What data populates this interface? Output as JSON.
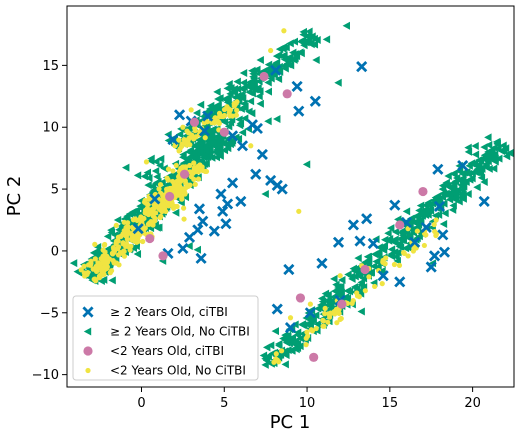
{
  "chart_data": {
    "type": "scatter",
    "xlabel": "PC 1",
    "ylabel": "PC 2",
    "xlim": [
      -4.5,
      22.5
    ],
    "ylim": [
      -11.0,
      19.8
    ],
    "x_ticks": [
      0,
      5,
      10,
      15,
      20
    ],
    "y_ticks": [
      -10,
      -5,
      0,
      5,
      10,
      15
    ],
    "grid": false,
    "legend_position": "lower-left",
    "series": [
      {
        "name": "≥ 2 Years Old, No CiTBI",
        "marker": "triangle-left",
        "color": "#009e73",
        "clusters": [
          {
            "x0": -3.2,
            "y0": -2.2,
            "x1": 4.8,
            "y1": 9.6,
            "spread": 0.9,
            "count": 480
          },
          {
            "x0": 2.0,
            "y0": 8.5,
            "x1": 10.5,
            "y1": 17.5,
            "spread": 0.8,
            "count": 190
          },
          {
            "x0": 7.5,
            "y0": -9.3,
            "x1": 21.8,
            "y1": 8.6,
            "spread": 0.85,
            "count": 420
          },
          {
            "x0": 0.5,
            "y0": 5.0,
            "x1": 7.0,
            "y1": 12.0,
            "spread": 1.4,
            "count": 90
          }
        ],
        "points": [
          {
            "x": 11.9,
            "y": 13.6
          },
          {
            "x": 8.3,
            "y": 13.9
          },
          {
            "x": 4.4,
            "y": 11.4
          },
          {
            "x": 7.2,
            "y": 11.9
          },
          {
            "x": 20.2,
            "y": 7.8
          },
          {
            "x": 21.5,
            "y": 8.8
          },
          {
            "x": 19.0,
            "y": 4.3
          },
          {
            "x": 20.0,
            "y": 6.3
          },
          {
            "x": 13.3,
            "y": -4.9
          },
          {
            "x": 7.5,
            "y": 4.6
          },
          {
            "x": 10.0,
            "y": 7.0
          },
          {
            "x": 17.6,
            "y": -1.0
          },
          {
            "x": 16.6,
            "y": 0.9
          },
          {
            "x": 11.2,
            "y": 17.1
          },
          {
            "x": 12.4,
            "y": 18.2
          },
          {
            "x": 2.9,
            "y": 0.4
          },
          {
            "x": 3.4,
            "y": 0.1
          },
          {
            "x": 1.3,
            "y": -0.8
          },
          {
            "x": 9.6,
            "y": -7.7
          },
          {
            "x": 18.2,
            "y": 5.0
          }
        ]
      },
      {
        "name": "<2 Years Old, No CiTBI",
        "marker": "circle-small",
        "color": "#f0e442",
        "clusters": [
          {
            "x0": -3.2,
            "y0": -2.3,
            "x1": 3.5,
            "y1": 7.0,
            "spread": 0.75,
            "count": 330
          },
          {
            "x0": 2.0,
            "y0": 8.2,
            "x1": 6.0,
            "y1": 12.0,
            "spread": 0.55,
            "count": 60
          },
          {
            "x0": 8.0,
            "y0": -8.8,
            "x1": 18.0,
            "y1": 2.0,
            "spread": 0.6,
            "count": 70
          }
        ],
        "points": [
          {
            "x": 8.6,
            "y": 17.8
          },
          {
            "x": 7.8,
            "y": 16.2
          },
          {
            "x": 2.0,
            "y": 3.6
          },
          {
            "x": 9.0,
            "y": -5.4
          },
          {
            "x": 13.3,
            "y": -1.2
          },
          {
            "x": 13.0,
            "y": -3.4
          },
          {
            "x": 11.8,
            "y": -5.8
          },
          {
            "x": 16.1,
            "y": 1.8
          },
          {
            "x": 17.1,
            "y": 1.4
          },
          {
            "x": 6.6,
            "y": 8.5
          },
          {
            "x": 10.2,
            "y": -4.3
          },
          {
            "x": 5.5,
            "y": 10.9
          },
          {
            "x": 4.7,
            "y": 10.3
          },
          {
            "x": 3.0,
            "y": 11.4
          },
          {
            "x": 2.5,
            "y": 10.0
          },
          {
            "x": 8.0,
            "y": -9.0
          },
          {
            "x": 0.3,
            "y": 7.2
          },
          {
            "x": 17.8,
            "y": 2.5
          },
          {
            "x": 12.0,
            "y": -2.0
          },
          {
            "x": 9.5,
            "y": 3.2
          }
        ]
      },
      {
        "name": "≥ 2 Years Old, ciTBI",
        "marker": "x-filled",
        "color": "#0072b2",
        "points": [
          {
            "x": 13.3,
            "y": 14.9
          },
          {
            "x": 8.1,
            "y": 14.6
          },
          {
            "x": 9.4,
            "y": 13.3
          },
          {
            "x": 17.9,
            "y": 6.6
          },
          {
            "x": 19.4,
            "y": 6.9
          },
          {
            "x": 20.7,
            "y": 4.0
          },
          {
            "x": 18.0,
            "y": 3.6
          },
          {
            "x": 17.2,
            "y": 1.9
          },
          {
            "x": 18.2,
            "y": 1.3
          },
          {
            "x": 18.3,
            "y": -0.1
          },
          {
            "x": 17.7,
            "y": -0.4
          },
          {
            "x": 17.5,
            "y": -1.3
          },
          {
            "x": 6.9,
            "y": 6.2
          },
          {
            "x": 7.8,
            "y": 5.7
          },
          {
            "x": 8.2,
            "y": 5.3
          },
          {
            "x": 8.5,
            "y": 5.0
          },
          {
            "x": 5.5,
            "y": 5.5
          },
          {
            "x": 4.8,
            "y": 4.6
          },
          {
            "x": 5.2,
            "y": 3.8
          },
          {
            "x": 3.5,
            "y": 3.4
          },
          {
            "x": 3.4,
            "y": 1.7
          },
          {
            "x": 4.9,
            "y": 3.2
          },
          {
            "x": 3.7,
            "y": 2.4
          },
          {
            "x": 2.9,
            "y": 1.1
          },
          {
            "x": 5.1,
            "y": 2.2
          },
          {
            "x": 7.0,
            "y": 9.9
          },
          {
            "x": 6.1,
            "y": 8.5
          },
          {
            "x": 5.5,
            "y": 9.3
          },
          {
            "x": 6.7,
            "y": 10.2
          },
          {
            "x": 3.0,
            "y": 10.5
          },
          {
            "x": 3.8,
            "y": 9.7
          },
          {
            "x": 4.0,
            "y": 10.9
          },
          {
            "x": 2.3,
            "y": 11.0
          },
          {
            "x": 1.9,
            "y": 9.0
          },
          {
            "x": 13.6,
            "y": 2.6
          },
          {
            "x": 12.8,
            "y": 2.1
          },
          {
            "x": 13.2,
            "y": 0.8
          },
          {
            "x": 14.0,
            "y": 0.6
          },
          {
            "x": 11.9,
            "y": 0.7
          },
          {
            "x": 10.9,
            "y": -1.0
          },
          {
            "x": 15.3,
            "y": 3.7
          },
          {
            "x": 16.0,
            "y": 2.3
          },
          {
            "x": 8.9,
            "y": -1.5
          },
          {
            "x": 10.2,
            "y": -5.0
          },
          {
            "x": 9.0,
            "y": -6.2
          },
          {
            "x": 8.2,
            "y": -4.7
          },
          {
            "x": 12.0,
            "y": -4.0
          },
          {
            "x": 14.6,
            "y": -2.0
          },
          {
            "x": 15.6,
            "y": -2.5
          },
          {
            "x": 16.5,
            "y": 0.7
          },
          {
            "x": 1.6,
            "y": -0.2
          },
          {
            "x": 3.6,
            "y": -0.6
          },
          {
            "x": 2.5,
            "y": 0.2
          },
          {
            "x": -0.2,
            "y": 1.8
          },
          {
            "x": 0.8,
            "y": 4.2
          },
          {
            "x": 7.3,
            "y": 7.8
          },
          {
            "x": 9.5,
            "y": 11.3
          },
          {
            "x": 10.5,
            "y": 12.1
          },
          {
            "x": 6.0,
            "y": 4.0
          },
          {
            "x": 4.4,
            "y": 1.6
          }
        ]
      },
      {
        "name": "<2 Years Old, ciTBI",
        "marker": "circle-large",
        "color": "#cc79a7",
        "points": [
          {
            "x": 8.8,
            "y": 12.7
          },
          {
            "x": 17.0,
            "y": 4.8
          },
          {
            "x": 7.4,
            "y": 14.1
          },
          {
            "x": 3.2,
            "y": 10.4
          },
          {
            "x": 5.0,
            "y": 9.6
          },
          {
            "x": 1.7,
            "y": 4.4
          },
          {
            "x": 13.5,
            "y": -1.5
          },
          {
            "x": 9.6,
            "y": -3.8
          },
          {
            "x": 1.3,
            "y": -0.4
          },
          {
            "x": 10.4,
            "y": -8.6
          },
          {
            "x": 2.6,
            "y": 6.2
          },
          {
            "x": 15.6,
            "y": 2.1
          },
          {
            "x": 12.1,
            "y": -4.3
          },
          {
            "x": 0.5,
            "y": 1.0
          }
        ]
      }
    ],
    "legend": [
      {
        "marker": "x-filled",
        "color": "#0072b2",
        "label": "≥ 2 Years Old, ciTBI"
      },
      {
        "marker": "triangle-left",
        "color": "#009e73",
        "label": "≥ 2 Years Old, No CiTBI"
      },
      {
        "marker": "circle-large",
        "color": "#cc79a7",
        "label": "<2 Years Old, ciTBI"
      },
      {
        "marker": "circle-small",
        "color": "#f0e442",
        "label": "<2 Years Old, No CiTBI"
      }
    ]
  }
}
